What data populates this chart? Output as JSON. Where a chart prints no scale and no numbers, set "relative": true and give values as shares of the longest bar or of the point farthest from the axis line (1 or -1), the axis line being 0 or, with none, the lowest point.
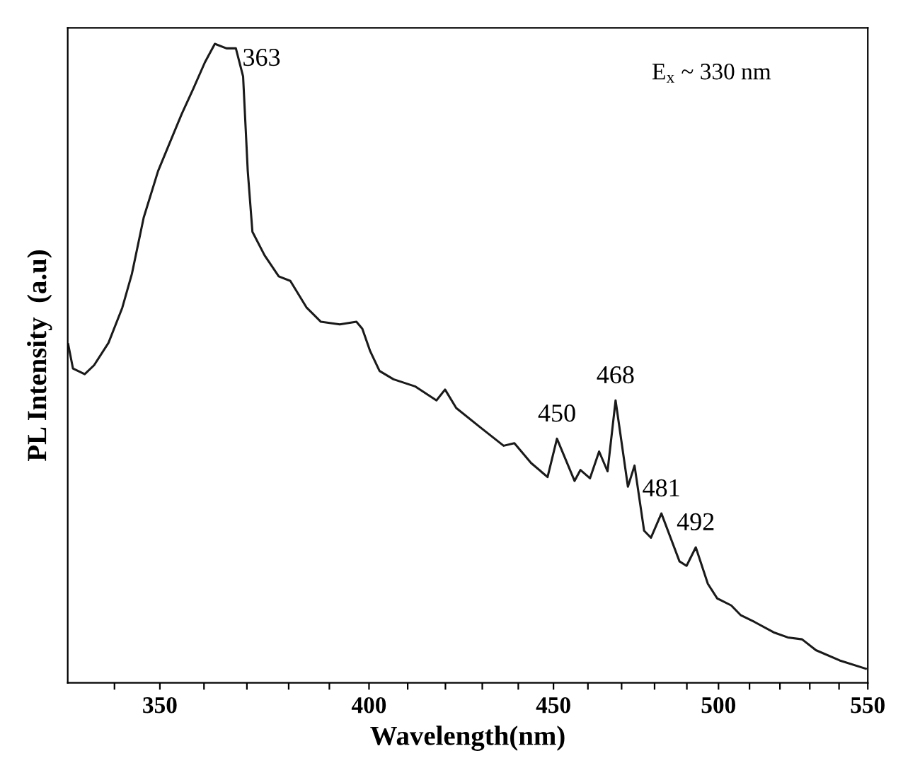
{
  "chart_data": {
    "type": "line",
    "relative": true,
    "log": "x",
    "xlabel": "Wavelength(nm)",
    "ylabel": "PL Intensity  (a.u)",
    "xlim": [
      330,
      550
    ],
    "xticks": [
      {
        "value": 340,
        "label": null
      },
      350,
      {
        "value": 360,
        "label": null
      },
      {
        "value": 370,
        "label": null
      },
      {
        "value": 380,
        "label": null
      },
      {
        "value": 390,
        "label": null
      },
      400,
      {
        "value": 410,
        "label": null
      },
      {
        "value": 420,
        "label": null
      },
      {
        "value": 430,
        "label": null
      },
      {
        "value": 440,
        "label": null
      },
      450,
      {
        "value": 460,
        "label": null
      },
      {
        "value": 470,
        "label": null
      },
      {
        "value": 480,
        "label": null
      },
      {
        "value": 490,
        "label": null
      },
      500,
      {
        "value": 510,
        "label": null
      },
      {
        "value": 520,
        "label": null
      },
      {
        "value": 530,
        "label": null
      },
      {
        "value": 540,
        "label": null
      },
      550
    ],
    "tick_labels": "x",
    "grid": false,
    "marker": "none",
    "line_style": "solid",
    "annotations": [
      {
        "text": "363",
        "x": 362.5,
        "y": 1.0
      },
      {
        "text": "450",
        "x": 451.0,
        "y": 0.382
      },
      {
        "text": "468",
        "x": 468.2,
        "y": 0.442
      },
      {
        "text": "481",
        "x": 482.1,
        "y": 0.265
      },
      {
        "text": "492",
        "x": 492.8,
        "y": 0.212
      },
      "E$_{x}$ ~ 330 nm"
    ],
    "series": [
      {
        "color": "#1a1a1a",
        "x": [
          330.1,
          331.1,
          333.6,
          335.6,
          338.7,
          341.7,
          343.8,
          346.4,
          349.6,
          352.2,
          354.9,
          357.5,
          360.2,
          362.5,
          365.2,
          367.4,
          369.1,
          370.2,
          371.3,
          374.2,
          377.6,
          380.4,
          384.4,
          387.9,
          392.6,
          396.8,
          398.3,
          400.3,
          402.7,
          406.3,
          411.9,
          417.6,
          419.9,
          422.9,
          429.4,
          435.9,
          438.9,
          443.6,
          448.3,
          451.0,
          456.1,
          457.8,
          460.6,
          463.3,
          465.8,
          468.2,
          471.9,
          473.9,
          476.8,
          478.9,
          482.1,
          487.7,
          489.9,
          492.8,
          496.6,
          499.6,
          504.1,
          507.1,
          511.7,
          517.9,
          522.6,
          527.4,
          532.1,
          540.2,
          549.3
        ],
        "values": [
          0.53,
          0.492,
          0.483,
          0.497,
          0.532,
          0.587,
          0.64,
          0.728,
          0.801,
          0.845,
          0.89,
          0.929,
          0.971,
          1.0,
          0.993,
          0.993,
          0.949,
          0.801,
          0.706,
          0.669,
          0.636,
          0.629,
          0.587,
          0.565,
          0.561,
          0.565,
          0.554,
          0.519,
          0.488,
          0.475,
          0.464,
          0.442,
          0.459,
          0.43,
          0.4,
          0.371,
          0.375,
          0.344,
          0.322,
          0.382,
          0.316,
          0.333,
          0.32,
          0.362,
          0.331,
          0.442,
          0.307,
          0.34,
          0.238,
          0.227,
          0.265,
          0.19,
          0.183,
          0.212,
          0.155,
          0.132,
          0.121,
          0.106,
          0.095,
          0.079,
          0.071,
          0.068,
          0.051,
          0.035,
          0.022
        ]
      }
    ]
  }
}
